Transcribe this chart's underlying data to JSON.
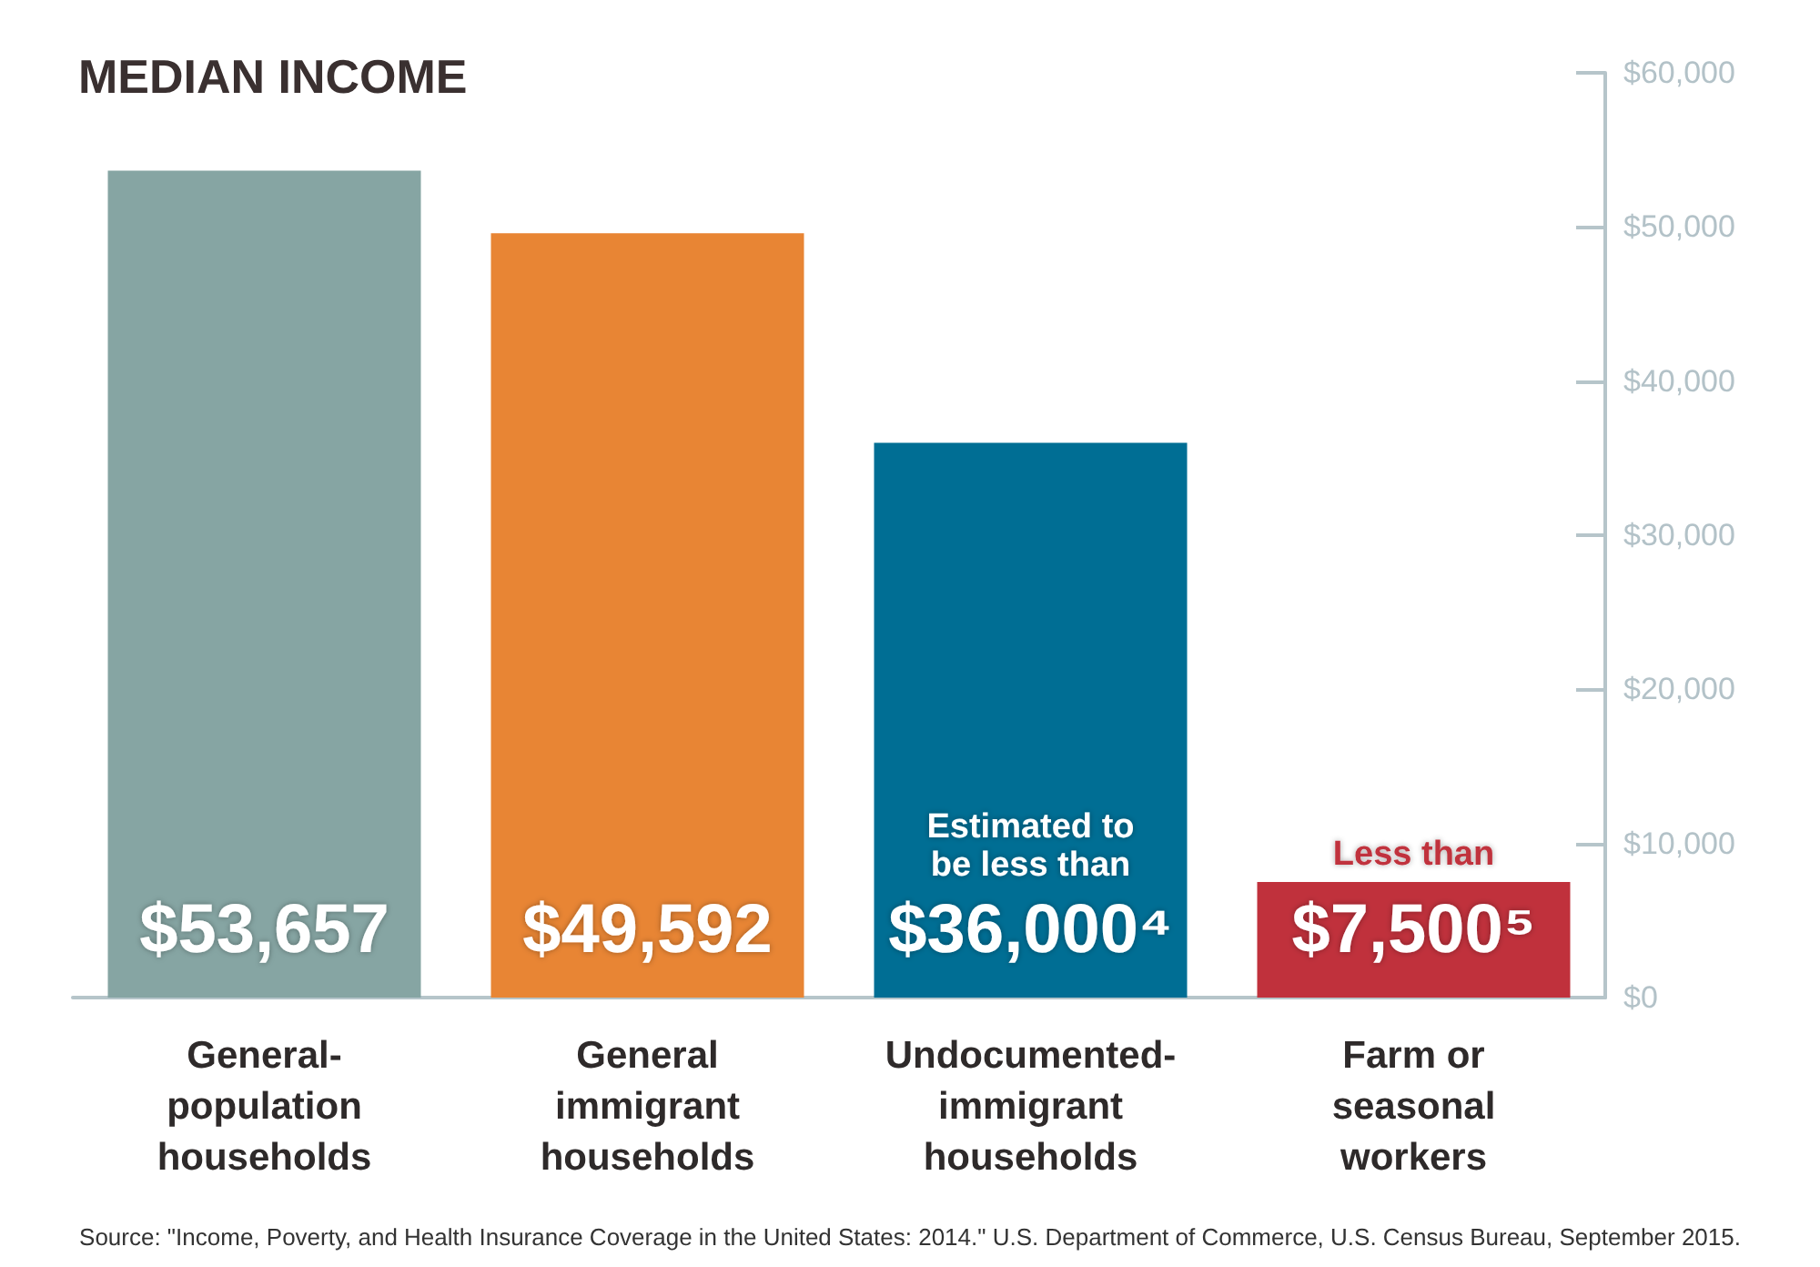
{
  "chart_data": {
    "type": "bar",
    "title": "MEDIAN INCOME",
    "categories": [
      "General-population households",
      "General immigrant households",
      "Undocumented-immigrant households",
      "Farm or seasonal workers"
    ],
    "values": [
      53657,
      49592,
      36000,
      7500
    ],
    "colors": [
      "#86a5a3",
      "#e88534",
      "#006e94",
      "#c0313c"
    ],
    "value_labels": [
      "$53,657",
      "$49,592",
      "Estimated to be less than $36,000⁴",
      "Less than $7,500⁵"
    ],
    "ylim": [
      0,
      60000
    ],
    "yticks": [
      {
        "value": 0,
        "label": "$0"
      },
      {
        "value": 10000,
        "label": "$10,000"
      },
      {
        "value": 20000,
        "label": "$20,000"
      },
      {
        "value": 30000,
        "label": "$30,000"
      },
      {
        "value": 40000,
        "label": "$40,000"
      },
      {
        "value": 50000,
        "label": "$50,000"
      },
      {
        "value": 60000,
        "label": "$60,000"
      }
    ],
    "grid": false,
    "annotations": [
      "Source: \"Income, Poverty, and Health Insurance Coverage in the United States: 2014.\" U.S. Department of Commerce, U.S. Census Bureau, September 2015."
    ]
  }
}
